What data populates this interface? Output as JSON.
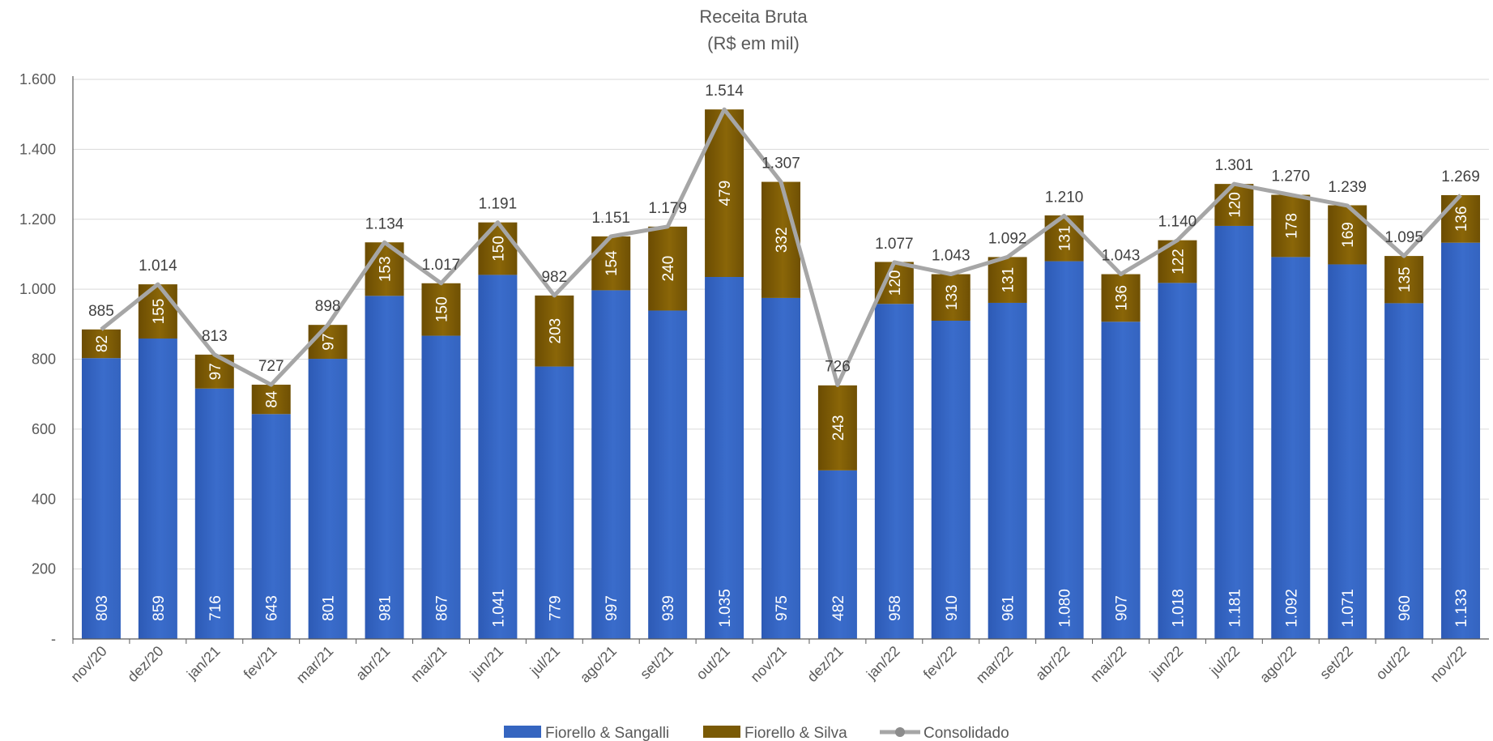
{
  "chart_data": {
    "type": "bar",
    "stacked": true,
    "title": "Receita Bruta",
    "subtitle": "(R$ em mil)",
    "categories": [
      "nov/20",
      "dez/20",
      "jan/21",
      "fev/21",
      "mar/21",
      "abr/21",
      "mai/21",
      "jun/21",
      "jul/21",
      "ago/21",
      "set/21",
      "out/21",
      "nov/21",
      "dez/21",
      "jan/22",
      "fev/22",
      "mar/22",
      "abr/22",
      "mai/22",
      "jun/22",
      "jul/22",
      "ago/22",
      "set/22",
      "out/22",
      "nov/22"
    ],
    "series": [
      {
        "name": "Fiorello & Sangalli",
        "color": "#3565c0",
        "values": [
          803,
          859,
          716,
          643,
          801,
          981,
          867,
          1041,
          779,
          997,
          939,
          1035,
          975,
          482,
          958,
          910,
          961,
          1080,
          907,
          1018,
          1181,
          1092,
          1071,
          960,
          1133
        ],
        "labels": [
          "803",
          "859",
          "716",
          "643",
          "801",
          "981",
          "867",
          "1.041",
          "779",
          "997",
          "939",
          "1.035",
          "975",
          "482",
          "958",
          "910",
          "961",
          "1.080",
          "907",
          "1.018",
          "1.181",
          "1.092",
          "1.071",
          "960",
          "1.133"
        ]
      },
      {
        "name": "Fiorello & Silva",
        "color": "#7a5a05",
        "values": [
          82,
          155,
          97,
          84,
          97,
          153,
          150,
          150,
          203,
          154,
          240,
          479,
          332,
          243,
          120,
          133,
          131,
          131,
          136,
          122,
          120,
          178,
          169,
          135,
          136
        ],
        "labels": [
          "82",
          "155",
          "97",
          "84",
          "97",
          "153",
          "150",
          "150",
          "203",
          "154",
          "240",
          "479",
          "332",
          "243",
          "120",
          "133",
          "131",
          "131",
          "136",
          "122",
          "120",
          "178",
          "169",
          "135",
          "136"
        ]
      },
      {
        "name": "Consolidado",
        "type": "line",
        "color": "#a6a6a6",
        "values": [
          885,
          1014,
          813,
          727,
          898,
          1134,
          1017,
          1191,
          982,
          1151,
          1179,
          1514,
          1307,
          726,
          1077,
          1043,
          1092,
          1210,
          1043,
          1140,
          1301,
          1270,
          1239,
          1095,
          1269
        ],
        "labels": [
          "885",
          "1.014",
          "813",
          "727",
          "898",
          "1.134",
          "1.017",
          "1.191",
          "982",
          "1.151",
          "1.179",
          "1.514",
          "1.307",
          "726",
          "1.077",
          "1.043",
          "1.092",
          "1.210",
          "1.043",
          "1.140",
          "1.301",
          "1.270",
          "1.239",
          "1.095",
          "1.269"
        ]
      }
    ],
    "yticks": [
      "-",
      "200",
      "400",
      "600",
      "800",
      "1.000",
      "1.200",
      "1.400",
      "1.600"
    ],
    "ylim": [
      0,
      1600
    ],
    "grid": true,
    "legend": "bottom"
  }
}
